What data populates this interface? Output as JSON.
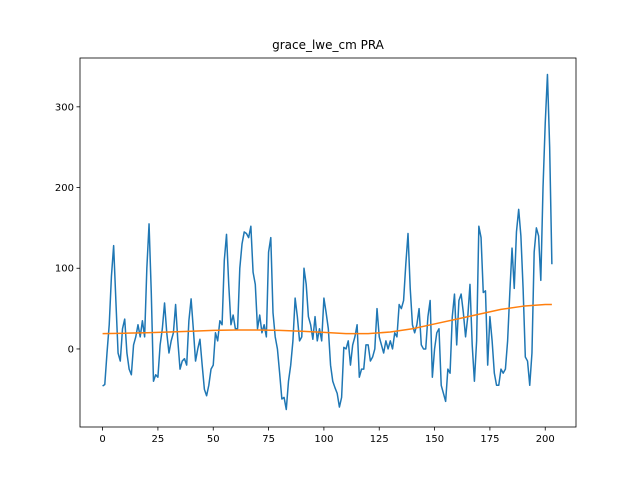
{
  "chart_data": {
    "type": "line",
    "title": "grace_lwe_cm PRA",
    "xlim": [
      -10.2,
      213.9
    ],
    "ylim": [
      -96.7,
      360.5
    ],
    "xticks": [
      0,
      25,
      50,
      75,
      100,
      125,
      150,
      175,
      200
    ],
    "yticks": [
      0,
      100,
      200,
      300
    ],
    "series": [
      {
        "color": "#1f77b4",
        "x": [
          0,
          1,
          2,
          3,
          4,
          5,
          6,
          7,
          8,
          9,
          10,
          11,
          12,
          13,
          14,
          15,
          16,
          17,
          18,
          19,
          20,
          21,
          22,
          23,
          24,
          25,
          26,
          27,
          28,
          29,
          30,
          31,
          32,
          33,
          34,
          35,
          36,
          37,
          38,
          39,
          40,
          41,
          42,
          43,
          44,
          45,
          46,
          47,
          48,
          49,
          50,
          51,
          52,
          53,
          54,
          55,
          56,
          57,
          58,
          59,
          60,
          61,
          62,
          63,
          64,
          65,
          66,
          67,
          68,
          69,
          70,
          71,
          72,
          73,
          74,
          75,
          76,
          77,
          78,
          79,
          80,
          81,
          82,
          83,
          84,
          85,
          86,
          87,
          88,
          89,
          90,
          91,
          92,
          93,
          94,
          95,
          96,
          97,
          98,
          99,
          100,
          101,
          102,
          103,
          104,
          105,
          106,
          107,
          108,
          109,
          110,
          111,
          112,
          113,
          114,
          115,
          116,
          117,
          118,
          119,
          120,
          121,
          122,
          123,
          124,
          125,
          126,
          127,
          128,
          129,
          130,
          131,
          132,
          133,
          134,
          135,
          136,
          137,
          138,
          139,
          140,
          141,
          142,
          143,
          144,
          145,
          146,
          147,
          148,
          149,
          150,
          151,
          152,
          153,
          154,
          155,
          156,
          157,
          158,
          159,
          160,
          161,
          162,
          163,
          164,
          165,
          166,
          167,
          168,
          169,
          170,
          171,
          172,
          173,
          174,
          175,
          176,
          177,
          178,
          179,
          180,
          181,
          182,
          183,
          184,
          185,
          186,
          187,
          188,
          189,
          190,
          191,
          192,
          193,
          194,
          195,
          196,
          197,
          198,
          199,
          200,
          201,
          202,
          203
        ],
        "values": [
          -46,
          -44,
          -5,
          30,
          90,
          128,
          60,
          -5,
          -15,
          25,
          37,
          -5,
          -25,
          -32,
          5,
          15,
          30,
          15,
          35,
          15,
          100,
          155,
          70,
          -40,
          -32,
          -35,
          5,
          25,
          57,
          20,
          -5,
          10,
          20,
          55,
          10,
          -25,
          -15,
          -12,
          -20,
          35,
          62,
          25,
          -15,
          0,
          12,
          -20,
          -50,
          -58,
          -45,
          -25,
          -20,
          20,
          10,
          35,
          30,
          110,
          142,
          80,
          30,
          42,
          25,
          25,
          100,
          130,
          145,
          143,
          138,
          152,
          95,
          80,
          25,
          42,
          20,
          30,
          15,
          120,
          138,
          45,
          15,
          0,
          -30,
          -62,
          -60,
          -75,
          -40,
          -20,
          10,
          63,
          40,
          10,
          15,
          100,
          80,
          40,
          30,
          12,
          40,
          10,
          25,
          10,
          63,
          45,
          25,
          -20,
          -40,
          -48,
          -55,
          -72,
          -60,
          2,
          0,
          10,
          -20,
          5,
          15,
          30,
          -35,
          -25,
          -25,
          5,
          5,
          -15,
          -10,
          0,
          50,
          15,
          5,
          -5,
          10,
          0,
          10,
          0,
          20,
          15,
          55,
          50,
          60,
          105,
          143,
          75,
          30,
          20,
          30,
          50,
          5,
          0,
          0,
          40,
          60,
          -35,
          0,
          20,
          25,
          -45,
          -55,
          -65,
          -25,
          -30,
          40,
          68,
          5,
          60,
          68,
          45,
          15,
          40,
          80,
          5,
          -40,
          10,
          152,
          138,
          70,
          72,
          -20,
          40,
          10,
          -30,
          -45,
          -45,
          -25,
          -30,
          -25,
          10,
          70,
          125,
          75,
          145,
          173,
          140,
          75,
          -10,
          -15,
          -45,
          -5,
          120,
          150,
          140,
          85,
          200,
          280,
          340,
          250,
          105
        ]
      },
      {
        "color": "#ff7f0e",
        "x": [
          0,
          10,
          20,
          30,
          40,
          50,
          60,
          70,
          80,
          90,
          100,
          110,
          120,
          130,
          140,
          150,
          160,
          170,
          180,
          190,
          200,
          203
        ],
        "values": [
          19,
          19.5,
          20,
          21,
          22,
          23,
          23.5,
          23.5,
          23,
          22,
          20.5,
          19,
          19,
          21,
          25,
          31,
          37,
          43,
          49,
          53,
          55,
          55
        ]
      }
    ]
  }
}
